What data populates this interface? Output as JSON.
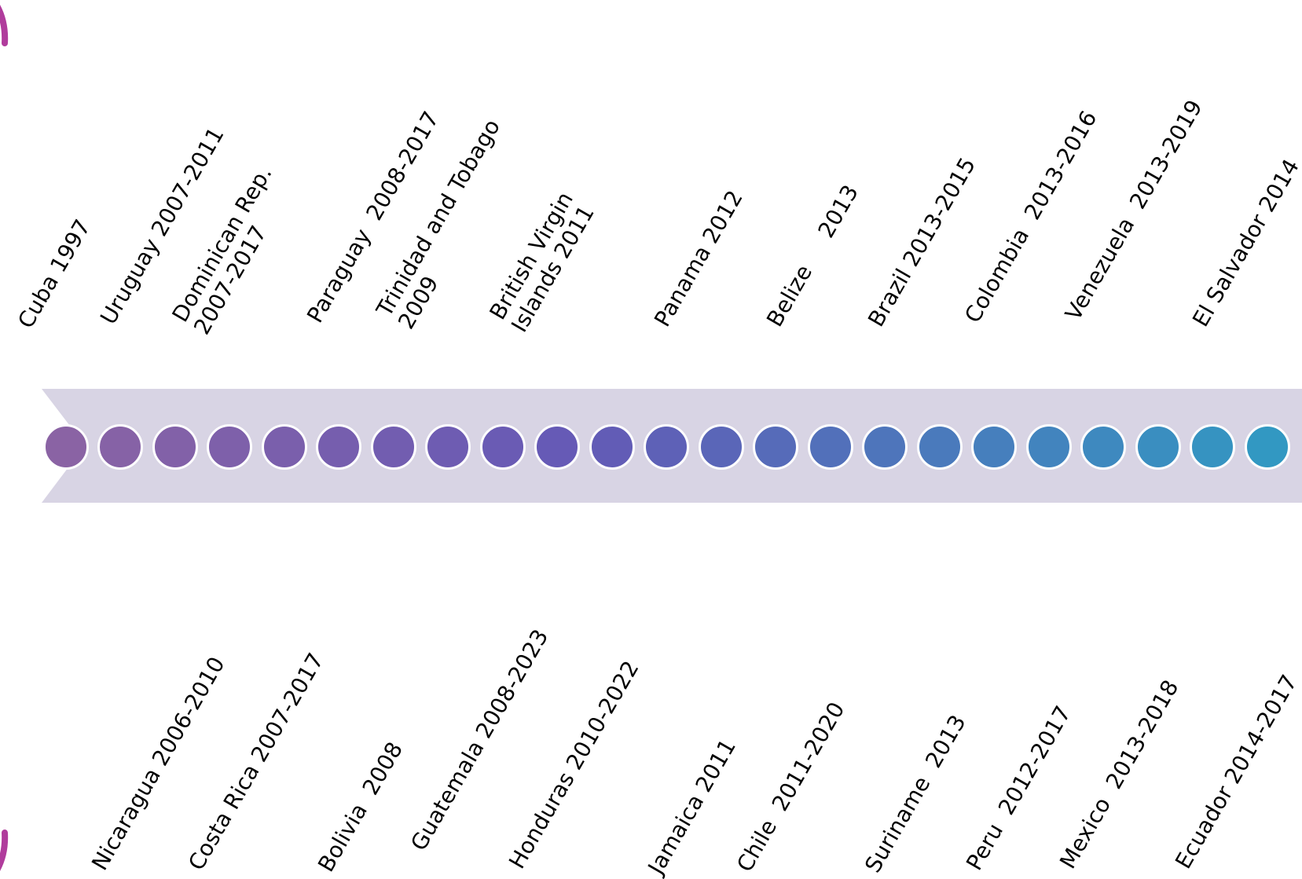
{
  "colors": {
    "band": "#d8d4e4",
    "frame_arc": "#b03c9c",
    "dots": [
      "#8a63a4",
      "#8662a6",
      "#8261a8",
      "#7e60aa",
      "#7a5fac",
      "#765eae",
      "#725db0",
      "#6e5cb2",
      "#6a5bb4",
      "#665ab6",
      "#625cb6",
      "#5e61b7",
      "#5a66b8",
      "#566bb9",
      "#5270ba",
      "#4e75bb",
      "#4a7abc",
      "#467fbd",
      "#4284be",
      "#3e89bf",
      "#3a8ec0",
      "#3693c1",
      "#3298c2",
      "#4aafc8"
    ]
  },
  "timeline": {
    "top_labels": [
      "Cuba 1997",
      "Uruguay 2007-2011",
      "Dominican Rep.\n2007-2017",
      "Paraguay  2008-2017",
      "Trinidad and Tobago\n2009",
      "British Virgin\nIslands 2011",
      "Panama 2012",
      "Belize     2013",
      "Brazil 2013-2015",
      "Colombia  2013-2016",
      "Venezuela  2013-2019",
      "El Salvador 2014"
    ],
    "bottom_labels": [
      "Nicaragua 2006-2010",
      "Costa Rica 2007-2017",
      "Bolivia  2008",
      "Guatemala 2008-2023",
      "Honduras 2010-2022",
      "Jamaica 2011",
      "Chile  2011-2020",
      "Suriname  2013",
      "Peru  2012-2017",
      "Mexico  2013-2018",
      "Ecuador 2014-2017"
    ]
  }
}
